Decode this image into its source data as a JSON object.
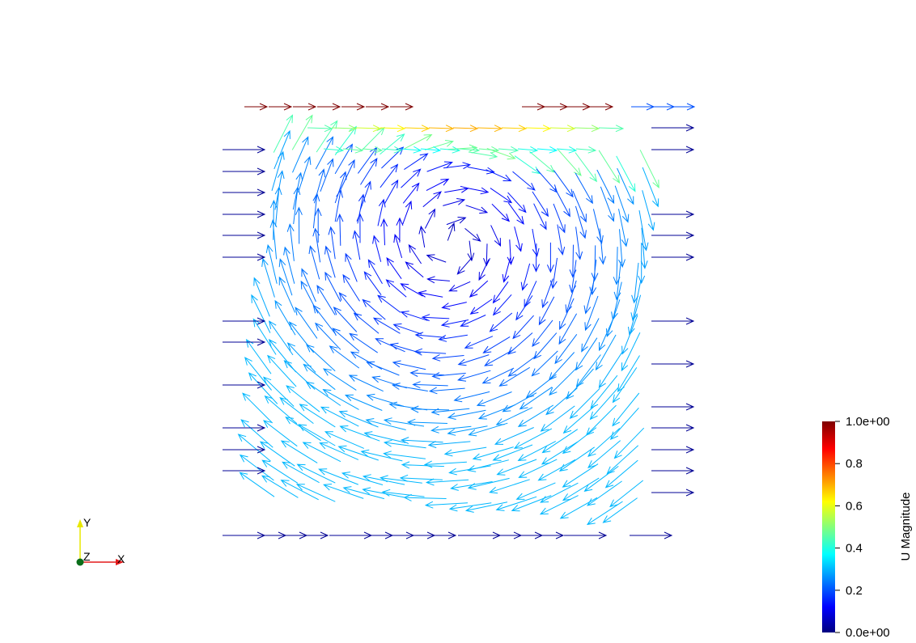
{
  "scene": {
    "field_name": "U Magnitude",
    "glyph_type": "arrow",
    "colormap": [
      "#00007f",
      "#0000ff",
      "#00ffff",
      "#ffff00",
      "#ff0000",
      "#7f0000"
    ]
  },
  "color_legend": {
    "title": "U Magnitude",
    "labels": [
      {
        "value": 1.0,
        "text": "1.0e+00"
      },
      {
        "value": 0.8,
        "text": "0.8"
      },
      {
        "value": 0.6,
        "text": "0.6"
      },
      {
        "value": 0.4,
        "text": "0.4"
      },
      {
        "value": 0.2,
        "text": "0.2"
      },
      {
        "value": 0.0,
        "text": "0.0e+00"
      }
    ],
    "range": [
      0.0,
      1.0
    ]
  },
  "orientation_axes": {
    "x_label": "X",
    "y_label": "Y",
    "z_label": "Z",
    "x_color": "#e31a1c",
    "y_color": "#e8e800",
    "z_color": "#0a6e1a"
  }
}
